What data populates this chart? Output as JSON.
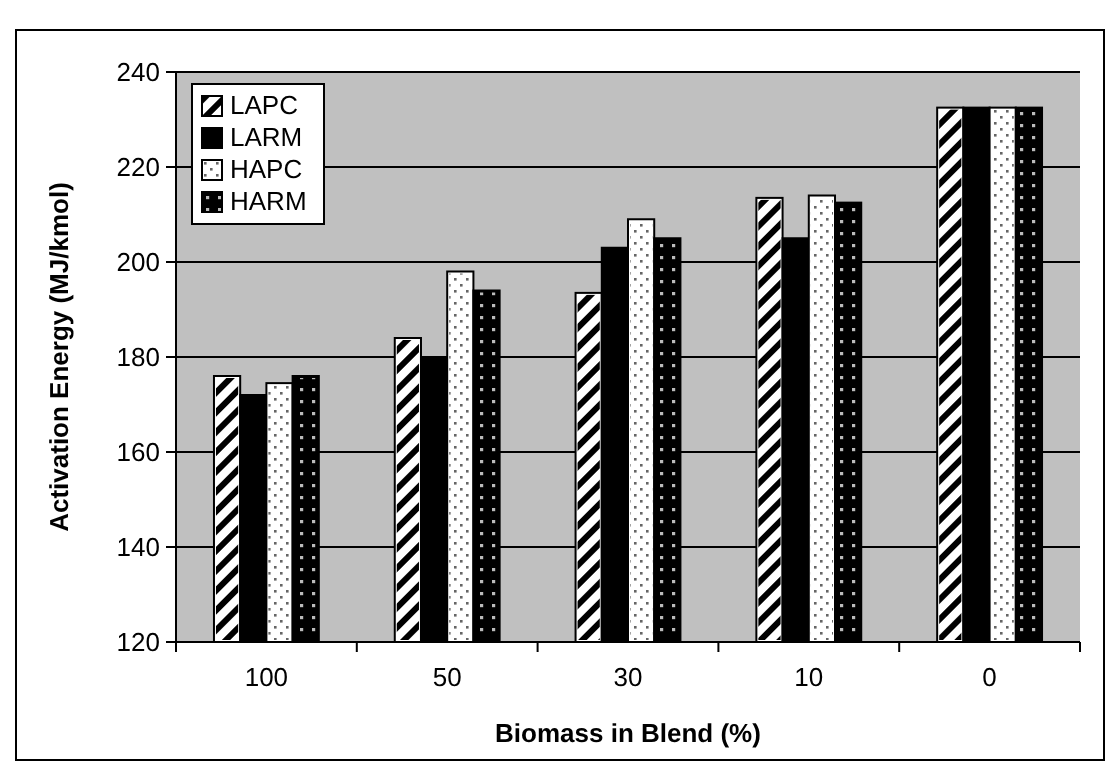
{
  "chart_data": {
    "type": "bar",
    "xlabel": "Biomass in Blend (%)",
    "ylabel": "Activation Energy (MJ/kmol)",
    "categories": [
      "100",
      "50",
      "30",
      "10",
      "0"
    ],
    "series": [
      {
        "name": "LAPC",
        "color": "#ffffff",
        "values": [
          176,
          184,
          193.5,
          213.5,
          232.5
        ]
      },
      {
        "name": "LARM",
        "color": "#000000",
        "values": [
          172,
          180,
          203,
          205,
          232.5
        ]
      },
      {
        "name": "HAPC",
        "color": "#ffffff",
        "values": [
          174.5,
          198,
          209,
          214,
          232.5
        ]
      },
      {
        "name": "HARM",
        "color": "#000000",
        "values": [
          176,
          194,
          205,
          212.5,
          232.5
        ]
      }
    ],
    "ylim": [
      120,
      240
    ],
    "yticks": [
      120,
      140,
      160,
      180,
      200,
      220,
      240
    ],
    "grid": "y",
    "legend": "top left"
  }
}
